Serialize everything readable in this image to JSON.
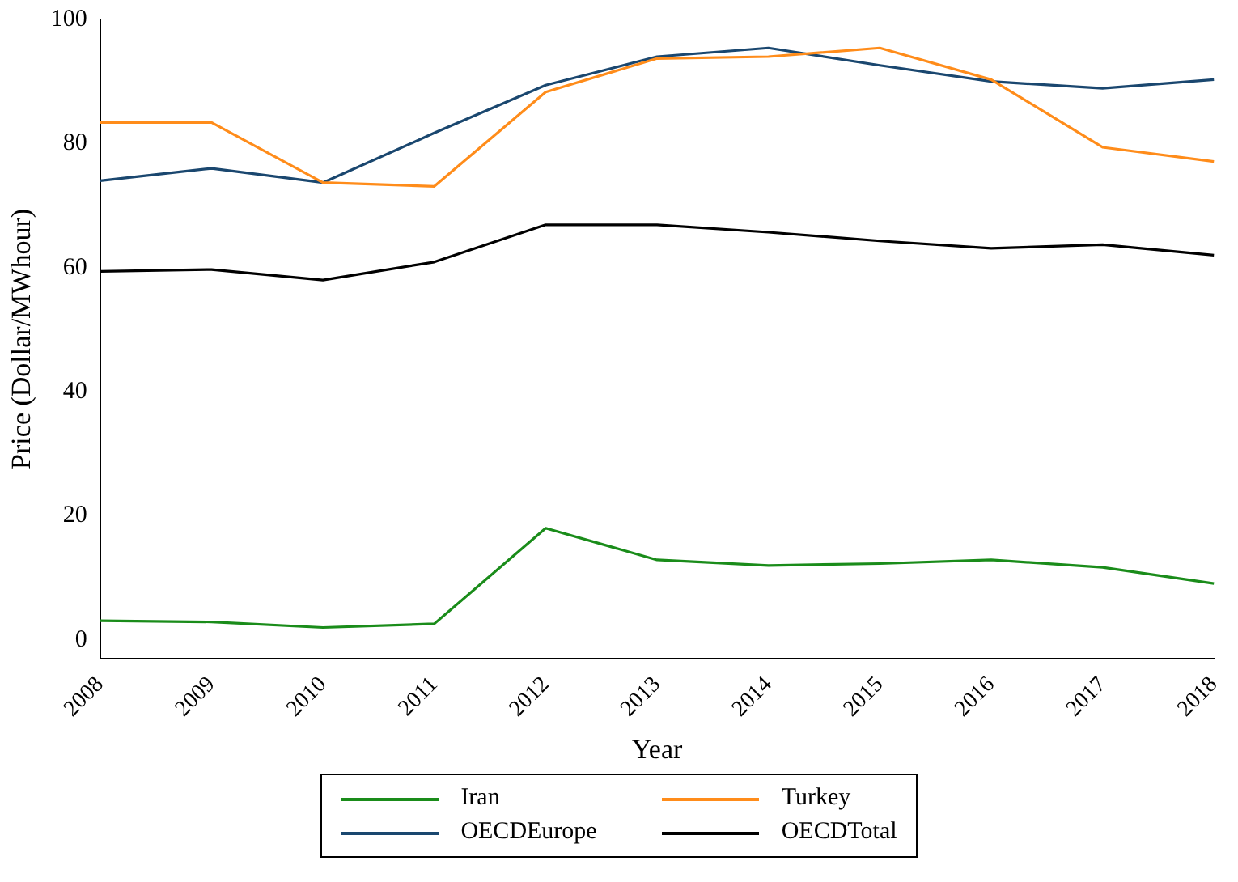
{
  "chart_data": {
    "type": "line",
    "xlabel": "Year",
    "ylabel": "Price (Dollar/MWhour)",
    "categories": [
      "2008",
      "2009",
      "2010",
      "2011",
      "2012",
      "2013",
      "2014",
      "2015",
      "2016",
      "2017",
      "2018"
    ],
    "series": [
      {
        "name": "Iran",
        "color": "#1a8c1a",
        "values": [
          3.1,
          2.9,
          2.0,
          2.6,
          18,
          12.9,
          12,
          12.3,
          12.9,
          11.7,
          9.1
        ]
      },
      {
        "name": "Turkey",
        "color": "#ff8c1a",
        "values": [
          83.4,
          83.4,
          73.7,
          73.1,
          88.3,
          93.7,
          94,
          95.4,
          90.3,
          79.4,
          77.1
        ]
      },
      {
        "name": "OECDEurope",
        "color": "#1a476f",
        "values": [
          74,
          76,
          73.7,
          81.7,
          89.4,
          94,
          95.4,
          92.6,
          90,
          88.9,
          90.3
        ]
      },
      {
        "name": "OECDTotal",
        "color": "#000000",
        "values": [
          59.4,
          59.7,
          58,
          60.9,
          66.9,
          66.9,
          65.7,
          64.3,
          63.1,
          63.7,
          62
        ]
      }
    ],
    "ylim": [
      -3,
      100
    ],
    "yticks": [
      0,
      20,
      40,
      60,
      80,
      100
    ],
    "grid": false,
    "legend": "bottom",
    "marker": "none",
    "line_style": "solid"
  }
}
